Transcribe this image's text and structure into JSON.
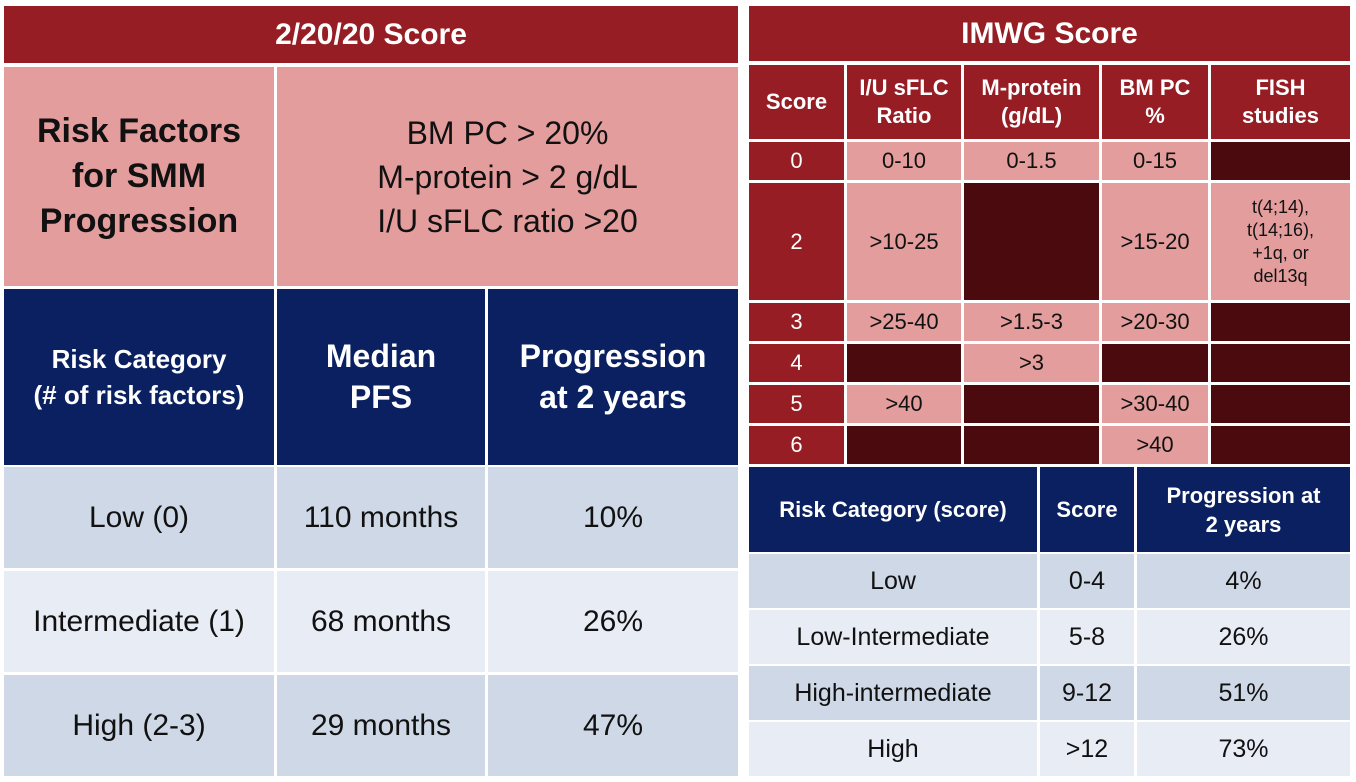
{
  "left": {
    "title": "2/20/20 Score",
    "risk_factors_label": "Risk Factors\nfor SMM\nProgression",
    "risk_factors": "BM PC > 20%\nM-protein > 2 g/dL\nI/U sFLC ratio >20",
    "headers": [
      "Risk Category\n(# of risk factors)",
      "Median\nPFS",
      "Progression\nat 2 years"
    ],
    "rows": [
      [
        "Low (0)",
        "110 months",
        "10%"
      ],
      [
        "Intermediate (1)",
        "68 months",
        "26%"
      ],
      [
        "High (2-3)",
        "29 months",
        "47%"
      ]
    ]
  },
  "right": {
    "title": "IMWG Score",
    "score_headers": [
      "Score",
      "I/U sFLC\nRatio",
      "M-protein\n(g/dL)",
      "BM PC\n%",
      "FISH\nstudies"
    ],
    "score_rows": [
      [
        "0",
        "0-10",
        "0-1.5",
        "0-15",
        ""
      ],
      [
        "2",
        ">10-25",
        "",
        ">15-20",
        "t(4;14),\nt(14;16),\n+1q, or\ndel13q"
      ],
      [
        "3",
        ">25-40",
        ">1.5-3",
        ">20-30",
        ""
      ],
      [
        "4",
        "",
        ">3",
        "",
        ""
      ],
      [
        "5",
        ">40",
        "",
        ">30-40",
        ""
      ],
      [
        "6",
        "",
        "",
        ">40",
        ""
      ]
    ],
    "risk_headers": [
      "Risk Category (score)",
      "Score",
      "Progression at\n2 years"
    ],
    "risk_rows": [
      [
        "Low",
        "0-4",
        "4%"
      ],
      [
        "Low-Intermediate",
        "5-8",
        "26%"
      ],
      [
        "High-intermediate",
        "9-12",
        "51%"
      ],
      [
        "High",
        ">12",
        "73%"
      ]
    ]
  },
  "colors": {
    "maroon": "#951d23",
    "pink": "#e39d9d",
    "dark_maroon": "#4a0a0e",
    "navy": "#0a2060",
    "light_blue": "#ced8e6",
    "lighter_blue": "#e8ecf4"
  }
}
